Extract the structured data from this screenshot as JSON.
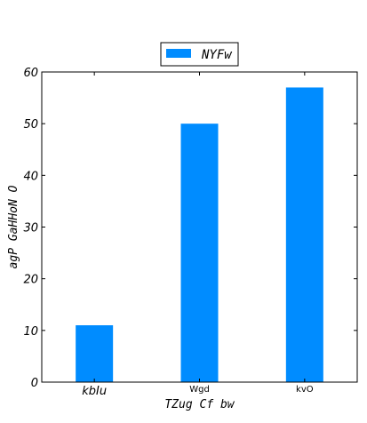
{
  "chart_data": {
    "type": "bar",
    "categories": [
      "kbIu",
      "Wgd",
      "kvO"
    ],
    "series": [
      {
        "name": "NYFw",
        "color": "#008cff",
        "values": [
          11,
          50,
          57
        ]
      }
    ],
    "xlabel": "TZug  Cf bw",
    "ylabel": "agP GaHHoN O",
    "ylim": [
      0,
      60
    ],
    "yticks": [
      0,
      10,
      20,
      30,
      40,
      50,
      60
    ],
    "grid": false,
    "legend_position": "top-center"
  }
}
